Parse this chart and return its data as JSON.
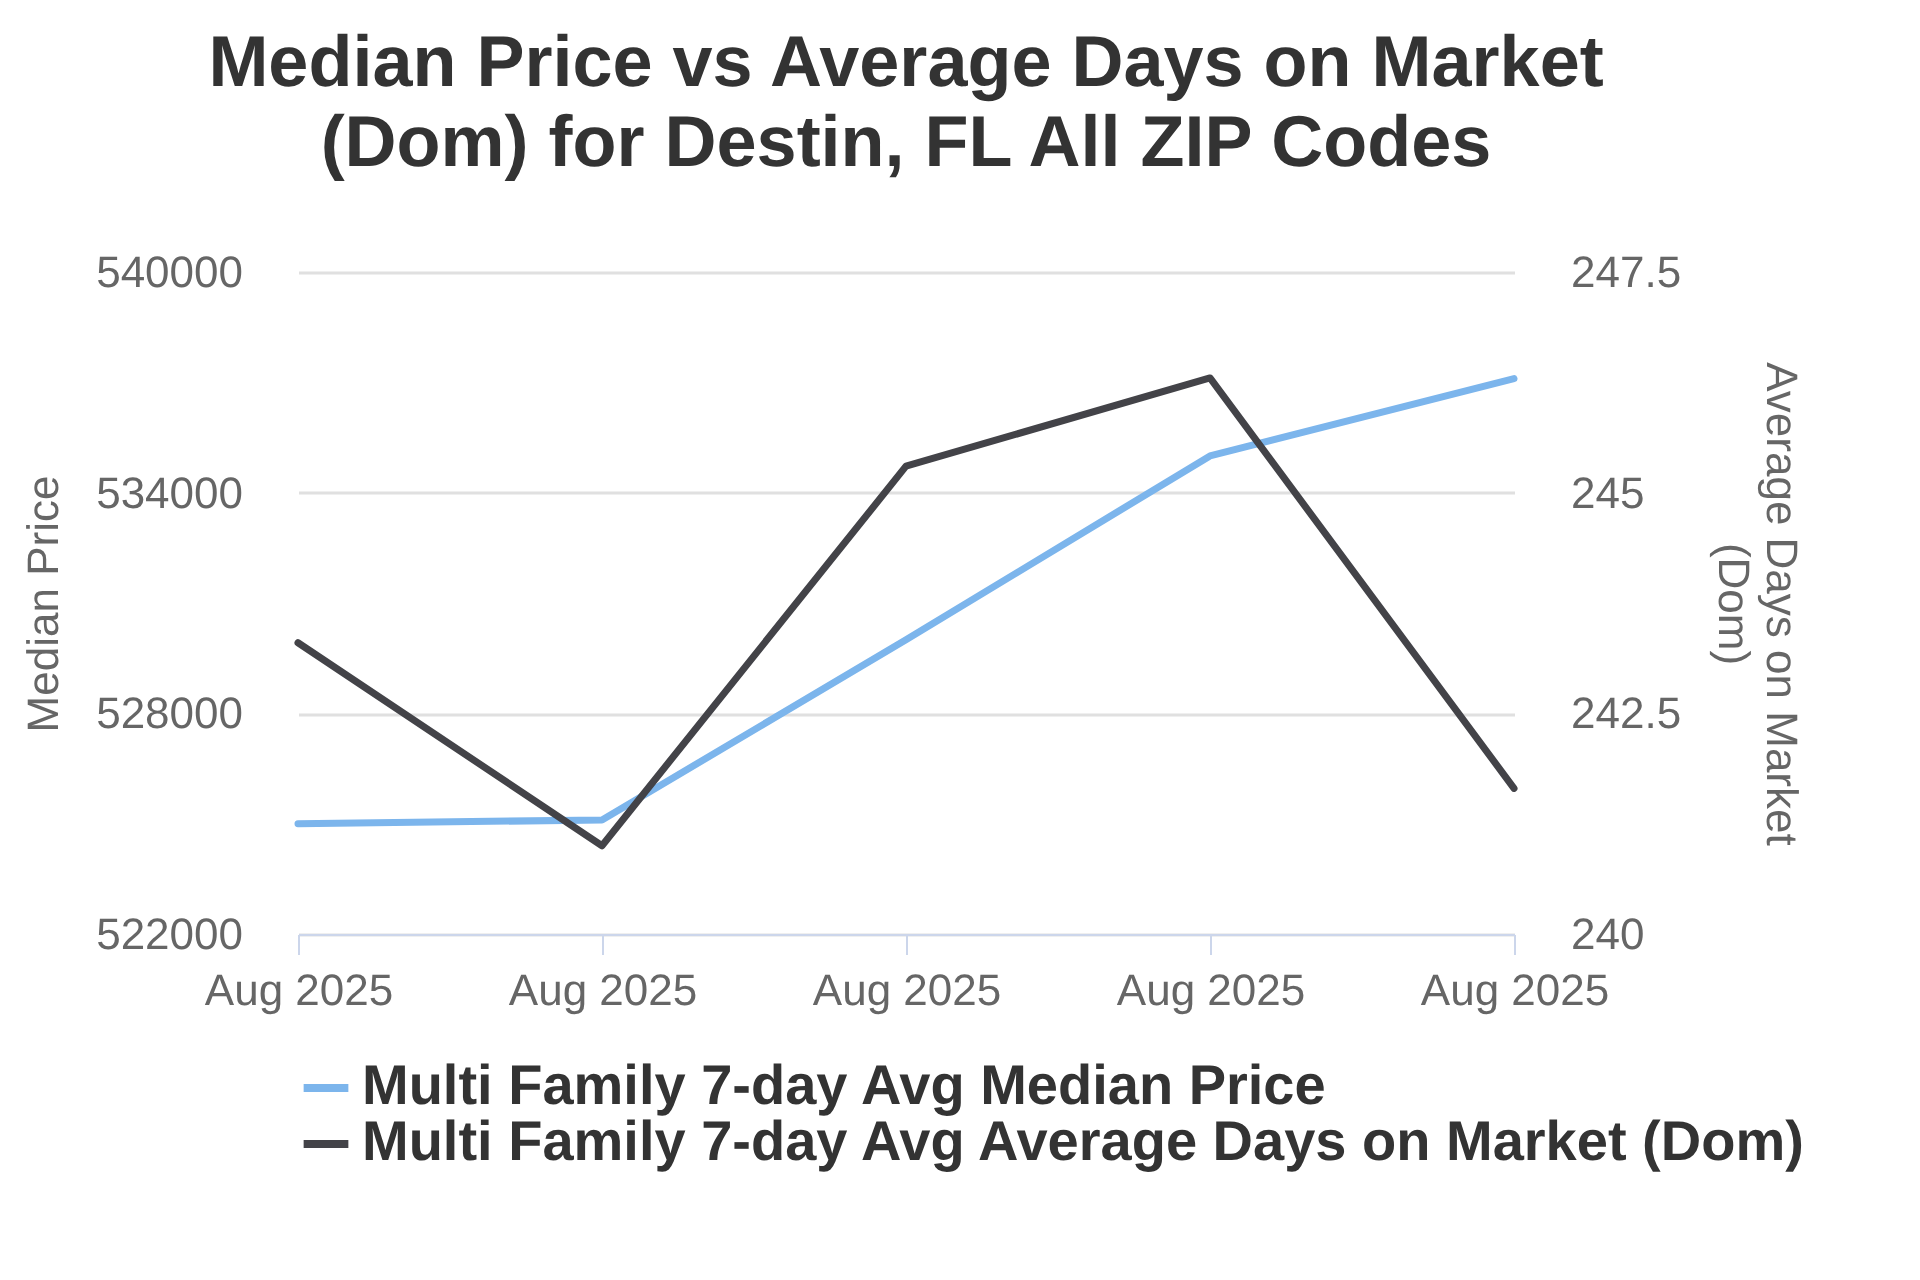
{
  "chart_data": {
    "type": "line",
    "title": "Median Price vs Average Days on Market (Dom) for Destin, FL All ZIP Codes",
    "ylabel": "Median Price",
    "y2label": "Average Days on Market (Dom)",
    "categories": [
      "Aug 2025",
      "Aug 2025",
      "Aug 2025",
      "Aug 2025",
      "Aug 2025"
    ],
    "series": [
      {
        "name": "Multi Family 7-day Avg Median Price",
        "color": "#7cb5ec",
        "values": [
          525000,
          525100,
          530000,
          535000,
          537100
        ]
      },
      {
        "name": "Multi Family 7-day Avg Average Days on Market (Dom)",
        "color": "#434348",
        "axis": "y2",
        "values": [
          243.3,
          241.0,
          245.3,
          246.3,
          241.65
        ]
      }
    ],
    "ylim": [
      522000,
      540000
    ],
    "yticks": [
      522000,
      528000,
      534000,
      540000
    ],
    "y2lim": [
      240,
      247.5
    ],
    "y2ticks": [
      240,
      242.5,
      245,
      247.5
    ],
    "grid": "y",
    "legend": "bottom",
    "marker": "none",
    "line_style": "solid"
  }
}
